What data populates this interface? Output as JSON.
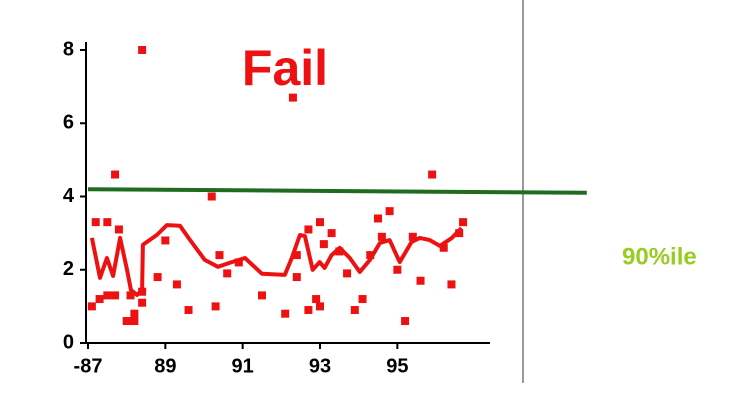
{
  "chart_data": {
    "type": "scatter",
    "annotation": "Fail",
    "annotation_color": "#ee1111",
    "xlim": [
      87,
      97.5
    ],
    "ylim": [
      0,
      8
    ],
    "xticks": [
      {
        "value": 87,
        "label": "-87"
      },
      89,
      91,
      93,
      95
    ],
    "yticks": [
      0,
      2,
      4,
      6,
      8
    ],
    "series": [
      {
        "type": "scatter",
        "color": "#ee1111",
        "x": [
          87.1,
          87.2,
          87.3,
          87.5,
          87.5,
          87.7,
          87.7,
          87.8,
          88.0,
          88.1,
          88.2,
          88.2,
          88.4,
          88.4,
          88.4,
          88.8,
          89.0,
          89.3,
          89.6,
          90.2,
          90.3,
          90.4,
          90.6,
          90.9,
          91.5,
          92.1,
          92.3,
          92.4,
          92.4,
          92.7,
          92.7,
          92.9,
          93.0,
          93.0,
          93.1,
          93.3,
          93.5,
          93.7,
          93.9,
          94.1,
          94.3,
          94.5,
          94.6,
          94.8,
          95.0,
          95.2,
          95.4,
          95.6,
          95.9,
          96.2,
          96.4,
          96.6,
          96.7
        ],
        "values": [
          1.0,
          3.3,
          1.2,
          3.3,
          1.3,
          1.3,
          4.6,
          3.1,
          0.6,
          1.3,
          0.6,
          0.8,
          1.4,
          1.1,
          8.0,
          1.8,
          2.8,
          1.6,
          0.9,
          4.0,
          1.0,
          2.4,
          1.9,
          2.2,
          1.3,
          0.8,
          6.7,
          1.8,
          2.4,
          3.1,
          0.9,
          1.2,
          3.3,
          1.0,
          2.7,
          3.0,
          2.5,
          1.9,
          0.9,
          1.2,
          2.4,
          3.4,
          2.9,
          3.6,
          2.0,
          0.6,
          2.9,
          1.7,
          4.6,
          2.6,
          1.6,
          3.0,
          3.3
        ]
      },
      {
        "type": "line",
        "color": "#ee1111",
        "x": [
          87.1,
          87.31,
          87.49,
          87.65,
          87.83,
          88.01,
          88.11,
          88.27,
          88.4,
          88.42,
          88.78,
          89.04,
          89.38,
          89.64,
          90.02,
          90.36,
          90.72,
          91.06,
          91.5,
          92.09,
          92.27,
          92.48,
          92.61,
          92.81,
          92.99,
          93.12,
          93.3,
          93.51,
          93.77,
          94.03,
          94.29,
          94.55,
          94.8,
          95.06,
          95.37,
          95.58,
          95.84,
          96.1,
          96.41,
          96.66
        ],
        "values": [
          2.87,
          1.78,
          2.32,
          1.83,
          2.87,
          1.99,
          1.45,
          1.31,
          1.45,
          2.68,
          2.95,
          3.22,
          3.2,
          2.81,
          2.27,
          2.08,
          2.21,
          2.32,
          1.89,
          1.86,
          2.32,
          2.95,
          2.92,
          2.0,
          2.21,
          2.05,
          2.4,
          2.6,
          2.32,
          1.94,
          2.27,
          2.73,
          2.81,
          2.21,
          2.76,
          2.87,
          2.81,
          2.65,
          2.87,
          3.14
        ]
      },
      {
        "type": "line",
        "name": "90%ile",
        "color": "#1f6b1f",
        "label_color": "#99cc22",
        "x": [
          87,
          99.9
        ],
        "values": [
          4.2,
          4.1
        ]
      }
    ]
  }
}
